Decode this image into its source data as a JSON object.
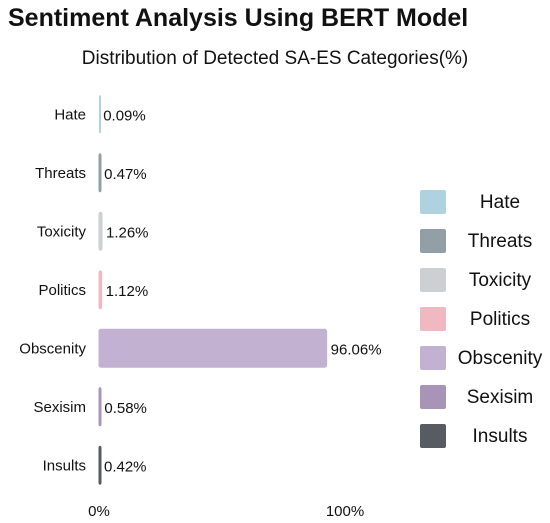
{
  "chart_data": {
    "type": "bar",
    "orientation": "horizontal",
    "title": "Sentiment Analysis Using BERT Model",
    "subtitle": "Distribution of Detected SA-ES Categories(%)",
    "categories": [
      "Hate",
      "Threats",
      "Toxicity",
      "Politics",
      "Obscenity",
      "Sexisim",
      "Insults"
    ],
    "values": [
      0.09,
      0.47,
      1.26,
      1.12,
      96.06,
      0.58,
      0.42
    ],
    "value_labels": [
      "0.09%",
      "0.47%",
      "1.26%",
      "1.12%",
      "96.06%",
      "0.58%",
      "0.42%"
    ],
    "colors": [
      "#aed3df",
      "#939fa6",
      "#cdd0d2",
      "#f0b8c0",
      "#c3b1d1",
      "#a894b6",
      "#575b62"
    ],
    "xlim": [
      0,
      100
    ],
    "xticks": [
      "0%",
      "100%"
    ],
    "xlabel": "",
    "ylabel": "",
    "grid": false,
    "legend": {
      "position": "right",
      "entries": [
        "Hate",
        "Threats",
        "Toxicity",
        "Politics",
        "Obscenity",
        "Sexisim",
        "Insults"
      ]
    }
  }
}
